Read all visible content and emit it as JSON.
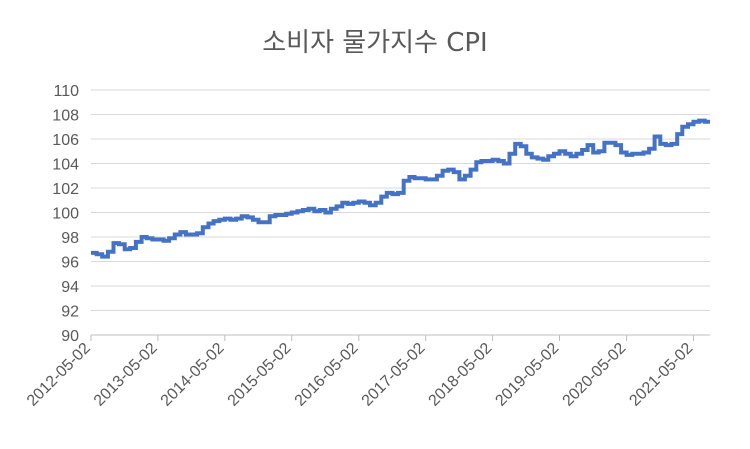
{
  "chart_data": {
    "type": "line",
    "title": "소비자 물가지수 CPI",
    "xlabel": "",
    "ylabel": "",
    "ylim": [
      90,
      110
    ],
    "yticks": [
      90,
      92,
      94,
      96,
      98,
      100,
      102,
      104,
      106,
      108,
      110
    ],
    "xlim": [
      "2012-05-02",
      "2021-07-31"
    ],
    "xticks": [
      "2012-05-02",
      "2013-05-02",
      "2014-05-02",
      "2015-05-02",
      "2016-05-02",
      "2017-05-02",
      "2018-05-02",
      "2019-05-02",
      "2020-05-02",
      "2021-05-02"
    ],
    "grid": true,
    "legend": "none",
    "series": [
      {
        "color": "#4472C4",
        "step": true,
        "x": [
          "2012-05-02",
          "2012-06-02",
          "2012-07-02",
          "2012-08-02",
          "2012-09-02",
          "2012-10-02",
          "2012-11-02",
          "2012-12-02",
          "2013-01-02",
          "2013-02-02",
          "2013-03-02",
          "2013-04-02",
          "2013-05-02",
          "2013-06-02",
          "2013-07-02",
          "2013-08-02",
          "2013-09-02",
          "2013-10-02",
          "2013-11-02",
          "2013-12-02",
          "2014-01-02",
          "2014-02-02",
          "2014-03-02",
          "2014-04-02",
          "2014-05-02",
          "2014-06-02",
          "2014-07-02",
          "2014-08-02",
          "2014-09-02",
          "2014-10-02",
          "2014-11-02",
          "2014-12-02",
          "2015-01-02",
          "2015-02-02",
          "2015-03-02",
          "2015-04-02",
          "2015-05-02",
          "2015-06-02",
          "2015-07-02",
          "2015-08-02",
          "2015-09-02",
          "2015-10-02",
          "2015-11-02",
          "2015-12-02",
          "2016-01-02",
          "2016-02-02",
          "2016-03-02",
          "2016-04-02",
          "2016-05-02",
          "2016-06-02",
          "2016-07-02",
          "2016-08-02",
          "2016-09-02",
          "2016-10-02",
          "2016-11-02",
          "2016-12-02",
          "2017-01-02",
          "2017-02-02",
          "2017-03-02",
          "2017-04-02",
          "2017-05-02",
          "2017-06-02",
          "2017-07-02",
          "2017-08-02",
          "2017-09-02",
          "2017-10-02",
          "2017-11-02",
          "2017-12-02",
          "2018-01-02",
          "2018-02-02",
          "2018-03-02",
          "2018-04-02",
          "2018-05-02",
          "2018-06-02",
          "2018-07-02",
          "2018-08-02",
          "2018-09-02",
          "2018-10-02",
          "2018-11-02",
          "2018-12-02",
          "2019-01-02",
          "2019-02-02",
          "2019-03-02",
          "2019-04-02",
          "2019-05-02",
          "2019-06-02",
          "2019-07-02",
          "2019-08-02",
          "2019-09-02",
          "2019-10-02",
          "2019-11-02",
          "2019-12-02",
          "2020-01-02",
          "2020-02-02",
          "2020-03-02",
          "2020-04-02",
          "2020-05-02",
          "2020-06-02",
          "2020-07-02",
          "2020-08-02",
          "2020-09-02",
          "2020-10-02",
          "2020-11-02",
          "2020-12-02",
          "2021-01-02",
          "2021-02-02",
          "2021-03-02",
          "2021-04-02",
          "2021-05-02",
          "2021-06-02",
          "2021-07-02"
        ],
        "values": [
          96.7,
          96.6,
          96.4,
          96.8,
          97.5,
          97.4,
          97.0,
          97.1,
          97.6,
          98.0,
          97.9,
          97.8,
          97.8,
          97.7,
          97.9,
          98.2,
          98.4,
          98.2,
          98.2,
          98.3,
          98.8,
          99.1,
          99.3,
          99.4,
          99.5,
          99.4,
          99.5,
          99.7,
          99.6,
          99.4,
          99.2,
          99.2,
          99.7,
          99.8,
          99.8,
          99.9,
          100.0,
          100.1,
          100.2,
          100.3,
          100.1,
          100.2,
          100.0,
          100.3,
          100.5,
          100.8,
          100.7,
          100.8,
          100.9,
          100.8,
          100.6,
          100.8,
          101.3,
          101.6,
          101.5,
          101.6,
          102.6,
          102.9,
          102.8,
          102.8,
          102.7,
          102.7,
          103.0,
          103.4,
          103.5,
          103.3,
          102.7,
          103.0,
          103.5,
          104.1,
          104.2,
          104.2,
          104.3,
          104.2,
          104.0,
          104.8,
          105.6,
          105.4,
          104.8,
          104.5,
          104.4,
          104.3,
          104.6,
          104.8,
          105.0,
          104.8,
          104.6,
          104.8,
          105.1,
          105.5,
          104.9,
          105.0,
          105.7,
          105.7,
          105.5,
          104.9,
          104.7,
          104.8,
          104.8,
          104.9,
          105.2,
          106.2,
          105.6,
          105.5,
          105.6,
          106.4,
          107.0,
          107.2,
          107.4,
          107.5,
          107.4
        ]
      }
    ]
  }
}
